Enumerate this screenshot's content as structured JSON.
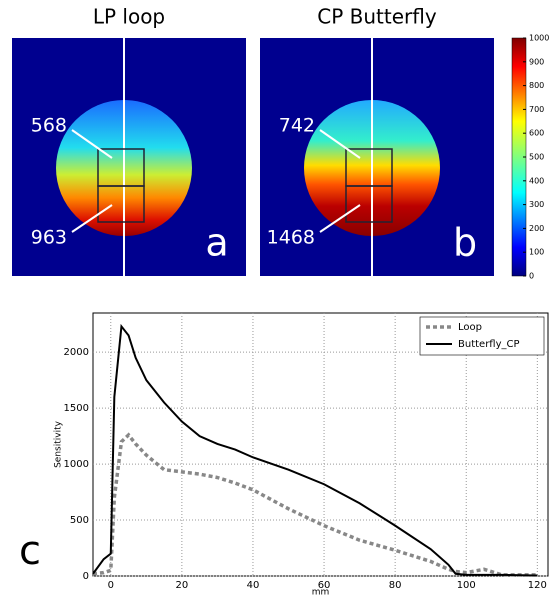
{
  "panels": [
    {
      "title": "LP loop",
      "letter": "a",
      "top_label": 568,
      "bottom_label": 963
    },
    {
      "title": "CP Butterfly",
      "letter": "b",
      "top_label": 742,
      "bottom_label": 1468
    }
  ],
  "colorbar": {
    "lim": [
      0,
      1000
    ],
    "ticks": [
      0,
      100,
      200,
      300,
      400,
      500,
      600,
      700,
      800,
      900,
      1000
    ]
  },
  "chart_data": {
    "type": "line",
    "panel_letter": "c",
    "x_label": "mm",
    "y_label": "Sensitivity",
    "x": [
      -5,
      -2,
      0,
      1,
      3,
      5,
      7,
      10,
      15,
      20,
      25,
      30,
      35,
      40,
      50,
      60,
      70,
      80,
      90,
      95,
      97,
      100,
      105,
      110,
      120
    ],
    "series": [
      {
        "name": "Loop",
        "color": "#888888",
        "dashed": true,
        "values": [
          20,
          30,
          50,
          700,
          1200,
          1260,
          1180,
          1080,
          950,
          930,
          910,
          880,
          830,
          770,
          600,
          450,
          320,
          230,
          130,
          60,
          40,
          30,
          60,
          10,
          10
        ]
      },
      {
        "name": "Butterfly_CP",
        "color": "#000000",
        "dashed": false,
        "values": [
          20,
          150,
          200,
          1600,
          2230,
          2150,
          1950,
          1750,
          1550,
          1380,
          1250,
          1180,
          1130,
          1060,
          950,
          820,
          650,
          450,
          240,
          100,
          20,
          10,
          10,
          10,
          5
        ]
      }
    ],
    "xlim": [
      -5,
      123
    ],
    "xticks": [
      0,
      20,
      40,
      60,
      80,
      100,
      120
    ],
    "ylim": [
      0,
      2350
    ],
    "yticks": [
      0,
      500,
      1000,
      1500,
      2000
    ],
    "grid": true,
    "legend": "upper-right"
  }
}
